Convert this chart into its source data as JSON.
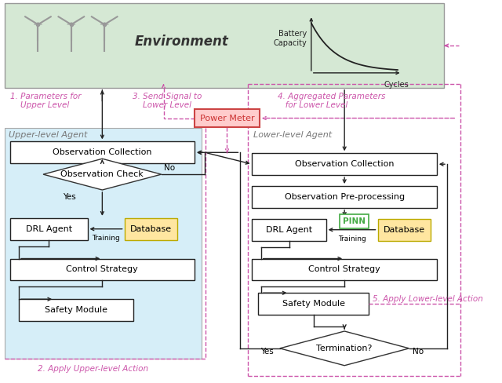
{
  "fig_width": 6.4,
  "fig_height": 4.88,
  "bg_color": "#ffffff",
  "env_bg": "#d5e8d4",
  "upper_bg": "#d6eef8",
  "pink": "#cc55aa",
  "arrow_color": "#222222",
  "db_fill": "#ffe6a0",
  "db_edge": "#bbaa00",
  "pm_fill": "#ffcccc",
  "pm_edge": "#cc4444",
  "pinn_fill": "#ffffff",
  "pinn_edge": "#44aa44",
  "pinn_text": "#44aa44",
  "title": "Environment",
  "upper_agent": "Upper-level Agent",
  "lower_agent": "Lower-level Agent",
  "obs_collect_u": "Observation Collection",
  "obs_check": "Observation Check",
  "drl_u": "DRL Agent",
  "db_u": "Database",
  "training_u": "Training",
  "ctrl_u": "Control Strategy",
  "safety_u": "Safety Module",
  "obs_collect_l": "Observation Collection",
  "obs_pre": "Observation Pre-processing",
  "drl_l": "DRL Agent",
  "pinn": "PINN",
  "db_l": "Database",
  "training_l": "Training",
  "ctrl_l": "Control Strategy",
  "safety_l": "Safety Module",
  "termination": "Termination?",
  "power_meter": "Power Meter",
  "lbl1": "1. Parameters for\n    Upper Level",
  "lbl2": "2. Apply Upper-level Action",
  "lbl3": "3. Send Signal to\n    Lower Level",
  "lbl4": "4. Aggregated Parameters\n   for Lower Level",
  "lbl5": "5. Apply Lower-level Action",
  "yes_u": "Yes",
  "no_u": "No",
  "yes_l": "Yes",
  "no_l": "No",
  "battery_capacity": "Battery\nCapacity",
  "cycles": "Cycles"
}
